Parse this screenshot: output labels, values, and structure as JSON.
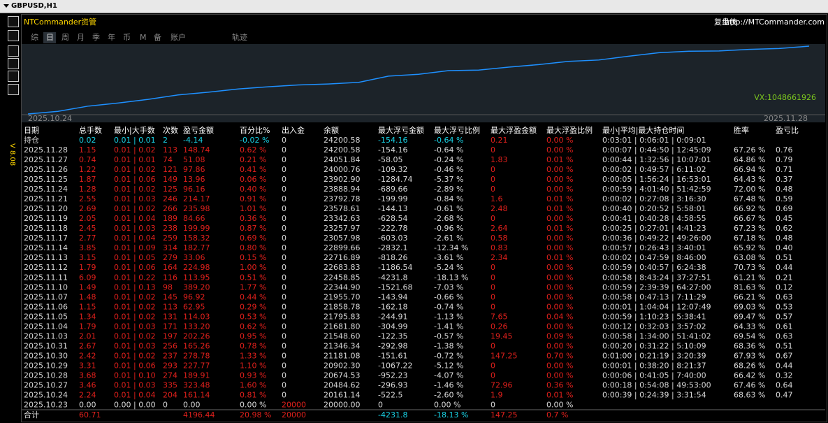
{
  "window": {
    "title": "GBPUSD,H1",
    "version": "V 8.08"
  },
  "header": {
    "title": "NTCommander资管",
    "brand": "复盘侠",
    "url": "http://MTCommander.com"
  },
  "tabs": [
    "综",
    "日",
    "周",
    "月",
    "季",
    "年",
    "币",
    "M",
    "备",
    "账户",
    "轨迹"
  ],
  "active_tab": 1,
  "chart": {
    "start_label": "2025.10.24",
    "end_label": "2025.11.28",
    "watermark": "VX:1048661926",
    "line_color": "#1e90ff"
  },
  "table": {
    "columns": [
      "日期",
      "总手数",
      "最小|大手数",
      "次数",
      "盈亏金额",
      "百分比%",
      "出入金",
      "余额",
      "最大浮亏金额",
      "最大浮亏比例",
      "最大浮盈金额",
      "最大浮盈比例",
      "最小|平均|最大持仓时间",
      "胜率",
      "盈亏比"
    ],
    "open_row": [
      "持仓",
      "0.02",
      "0.01 | 0.01",
      "2",
      "-4.14",
      "-0.02 %",
      "0",
      "24200.58",
      "-154.16",
      "-0.64 %",
      "0.21",
      "0.00 %",
      "0:03:01 | 0:06:01 | 0:09:01",
      null,
      null
    ],
    "rows": [
      [
        "2025.11.28",
        "1.15",
        "0.01 | 0.02",
        "113",
        "148.74",
        "0.62 %",
        "0",
        "24200.58",
        "-154.16",
        "-0.64 %",
        "0",
        "0.00 %",
        "0:00:07 | 0:44:50 | 12:45:09",
        "67.26 %",
        "0.76"
      ],
      [
        "2025.11.27",
        "0.74",
        "0.01 | 0.01",
        "74",
        "51.08",
        "0.21 %",
        "0",
        "24051.84",
        "-58.05",
        "-0.24 %",
        "1.83",
        "0.01 %",
        "0:00:44 | 1:32:56 | 10:07:01",
        "64.86 %",
        "0.79"
      ],
      [
        "2025.11.26",
        "1.22",
        "0.01 | 0.02",
        "121",
        "97.86",
        "0.41 %",
        "0",
        "24000.76",
        "-109.32",
        "-0.46 %",
        "0",
        "0.00 %",
        "0:00:02 | 0:49:57 | 6:11:02",
        "66.94 %",
        "0.71"
      ],
      [
        "2025.11.25",
        "1.87",
        "0.01 | 0.06",
        "149",
        "13.96",
        "0.06 %",
        "0",
        "23902.90",
        "-1284.74",
        "-5.37 %",
        "0",
        "0.00 %",
        "0:00:05 | 1:56:24 | 16:53:01",
        "64.43 %",
        "0.37"
      ],
      [
        "2025.11.24",
        "1.28",
        "0.01 | 0.02",
        "125",
        "96.16",
        "0.40 %",
        "0",
        "23888.94",
        "-689.66",
        "-2.89 %",
        "0",
        "0.00 %",
        "0:00:59 | 4:01:40 | 51:42:59",
        "72.00 %",
        "0.48"
      ],
      [
        "2025.11.21",
        "2.55",
        "0.01 | 0.03",
        "246",
        "214.17",
        "0.91 %",
        "0",
        "23792.78",
        "-199.99",
        "-0.84 %",
        "1.6",
        "0.01 %",
        "0:00:02 | 0:27:08 | 3:16:30",
        "67.48 %",
        "0.59"
      ],
      [
        "2025.11.20",
        "2.69",
        "0.01 | 0.02",
        "266",
        "235.98",
        "1.01 %",
        "0",
        "23578.61",
        "-144.13",
        "-0.61 %",
        "2.48",
        "0.01 %",
        "0:00:40 | 0:20:52 | 5:58:01",
        "66.92 %",
        "0.69"
      ],
      [
        "2025.11.19",
        "2.05",
        "0.01 | 0.04",
        "189",
        "84.66",
        "0.36 %",
        "0",
        "23342.63",
        "-628.54",
        "-2.68 %",
        "0",
        "0.00 %",
        "0:00:41 | 0:40:28 | 4:58:55",
        "66.67 %",
        "0.45"
      ],
      [
        "2025.11.18",
        "2.45",
        "0.01 | 0.03",
        "238",
        "199.99",
        "0.87 %",
        "0",
        "23257.97",
        "-222.78",
        "-0.96 %",
        "2.64",
        "0.01 %",
        "0:00:25 | 0:27:01 | 4:41:23",
        "67.23 %",
        "0.62"
      ],
      [
        "2025.11.17",
        "2.77",
        "0.01 | 0.04",
        "259",
        "158.32",
        "0.69 %",
        "0",
        "23057.98",
        "-603.03",
        "-2.61 %",
        "0.58",
        "0.00 %",
        "0:00:36 | 0:49:22 | 49:26:00",
        "67.18 %",
        "0.48"
      ],
      [
        "2025.11.14",
        "3.85",
        "0.01 | 0.09",
        "314",
        "182.77",
        "0.80 %",
        "0",
        "22899.66",
        "-2832.1",
        "-12.34 %",
        "0.83",
        "0.00 %",
        "0:00:57 | 0:26:43 | 3:40:01",
        "65.92 %",
        "0.40"
      ],
      [
        "2025.11.13",
        "3.15",
        "0.01 | 0.05",
        "279",
        "33.06",
        "0.15 %",
        "0",
        "22716.89",
        "-818.26",
        "-3.61 %",
        "2.34",
        "0.01 %",
        "0:00:02 | 0:47:59 | 8:46:00",
        "63.08 %",
        "0.51"
      ],
      [
        "2025.11.12",
        "1.79",
        "0.01 | 0.06",
        "164",
        "224.98",
        "1.00 %",
        "0",
        "22683.83",
        "-1186.54",
        "-5.24 %",
        "0",
        "0.00 %",
        "0:00:59 | 0:40:57 | 6:24:38",
        "70.73 %",
        "0.44"
      ],
      [
        "2025.11.11",
        "6.09",
        "0.01 | 0.22",
        "116",
        "113.95",
        "0.51 %",
        "0",
        "22458.85",
        "-4231.8",
        "-18.13 %",
        "0",
        "0.00 %",
        "0:00:58 | 8:43:24 | 37:27:51",
        "61.21 %",
        "0.21"
      ],
      [
        "2025.11.10",
        "1.49",
        "0.01 | 0.13",
        "98",
        "389.20",
        "1.77 %",
        "0",
        "22344.90",
        "-1521.68",
        "-7.03 %",
        "0",
        "0.00 %",
        "0:00:59 | 2:39:39 | 64:27:00",
        "81.63 %",
        "0.12"
      ],
      [
        "2025.11.07",
        "1.48",
        "0.01 | 0.02",
        "145",
        "96.92",
        "0.44 %",
        "0",
        "21955.70",
        "-143.94",
        "-0.66 %",
        "0",
        "0.00 %",
        "0:00:58 | 0:47:13 | 7:11:29",
        "66.21 %",
        "0.63"
      ],
      [
        "2025.11.06",
        "1.15",
        "0.01 | 0.02",
        "113",
        "62.95",
        "0.29 %",
        "0",
        "21858.78",
        "-162.18",
        "-0.74 %",
        "0",
        "0.00 %",
        "0:00:01 | 1:04:04 | 12:07:49",
        "69.03 %",
        "0.53"
      ],
      [
        "2025.11.05",
        "1.34",
        "0.01 | 0.02",
        "131",
        "114.03",
        "0.53 %",
        "0",
        "21795.83",
        "-244.91",
        "-1.13 %",
        "7.65",
        "0.04 %",
        "0:00:59 | 1:10:23 | 5:38:41",
        "69.47 %",
        "0.57"
      ],
      [
        "2025.11.04",
        "1.79",
        "0.01 | 0.03",
        "171",
        "133.20",
        "0.62 %",
        "0",
        "21681.80",
        "-304.99",
        "-1.41 %",
        "0.26",
        "0.00 %",
        "0:00:12 | 0:32:03 | 3:57:02",
        "64.33 %",
        "0.61"
      ],
      [
        "2025.11.03",
        "2.01",
        "0.01 | 0.02",
        "197",
        "202.26",
        "0.95 %",
        "0",
        "21548.60",
        "-122.35",
        "-0.57 %",
        "19.45",
        "0.09 %",
        "0:00:58 | 1:34:00 | 51:41:02",
        "69.54 %",
        "0.63"
      ],
      [
        "2025.10.31",
        "2.67",
        "0.01 | 0.03",
        "256",
        "165.26",
        "0.78 %",
        "0",
        "21346.34",
        "-292.98",
        "-1.38 %",
        "0",
        "0.00 %",
        "0:00:20 | 0:31:22 | 5:10:09",
        "68.36 %",
        "0.51"
      ],
      [
        "2025.10.30",
        "2.42",
        "0.01 | 0.02",
        "237",
        "278.78",
        "1.33 %",
        "0",
        "21181.08",
        "-151.61",
        "-0.72 %",
        "147.25",
        "0.70 %",
        "0:01:00 | 0:21:19 | 3:20:39",
        "67.93 %",
        "0.67"
      ],
      [
        "2025.10.29",
        "3.31",
        "0.01 | 0.06",
        "293",
        "227.77",
        "1.10 %",
        "0",
        "20902.30",
        "-1067.22",
        "-5.12 %",
        "0",
        "0.00 %",
        "0:00:01 | 0:38:20 | 8:21:37",
        "68.26 %",
        "0.44"
      ],
      [
        "2025.10.28",
        "3.68",
        "0.01 | 0.10",
        "274",
        "189.91",
        "0.93 %",
        "0",
        "20674.53",
        "-952.23",
        "-4.07 %",
        "0",
        "0.00 %",
        "0:00:06 | 0:41:05 | 7:40:00",
        "66.42 %",
        "0.32"
      ],
      [
        "2025.10.27",
        "3.46",
        "0.01 | 0.03",
        "335",
        "323.48",
        "1.60 %",
        "0",
        "20484.62",
        "-296.93",
        "-1.46 %",
        "72.96",
        "0.36 %",
        "0:00:18 | 0:54:08 | 49:53:00",
        "67.46 %",
        "0.64"
      ],
      [
        "2025.10.24",
        "2.24",
        "0.01 | 0.04",
        "204",
        "161.14",
        "0.81 %",
        "0",
        "20161.14",
        "-522.5",
        "-2.60 %",
        "1.9",
        "0.01 %",
        "0:00:39 | 0:24:39 | 3:31:54",
        "68.63 %",
        "0.47"
      ],
      [
        "2025.10.23",
        "0.00",
        "0.00 | 0.00",
        "0",
        "0.00",
        "0.00 %",
        "20000",
        "20000.00",
        "0",
        "0.00 %",
        "0",
        "0.00 %",
        null,
        null,
        null
      ]
    ],
    "total_row": [
      "合计",
      "60.71",
      null,
      null,
      "4196.44",
      "20.98 %",
      "20000",
      null,
      "-4231.8",
      "-18.13 %",
      "147.25",
      "0.7 %",
      null,
      null,
      null
    ]
  }
}
